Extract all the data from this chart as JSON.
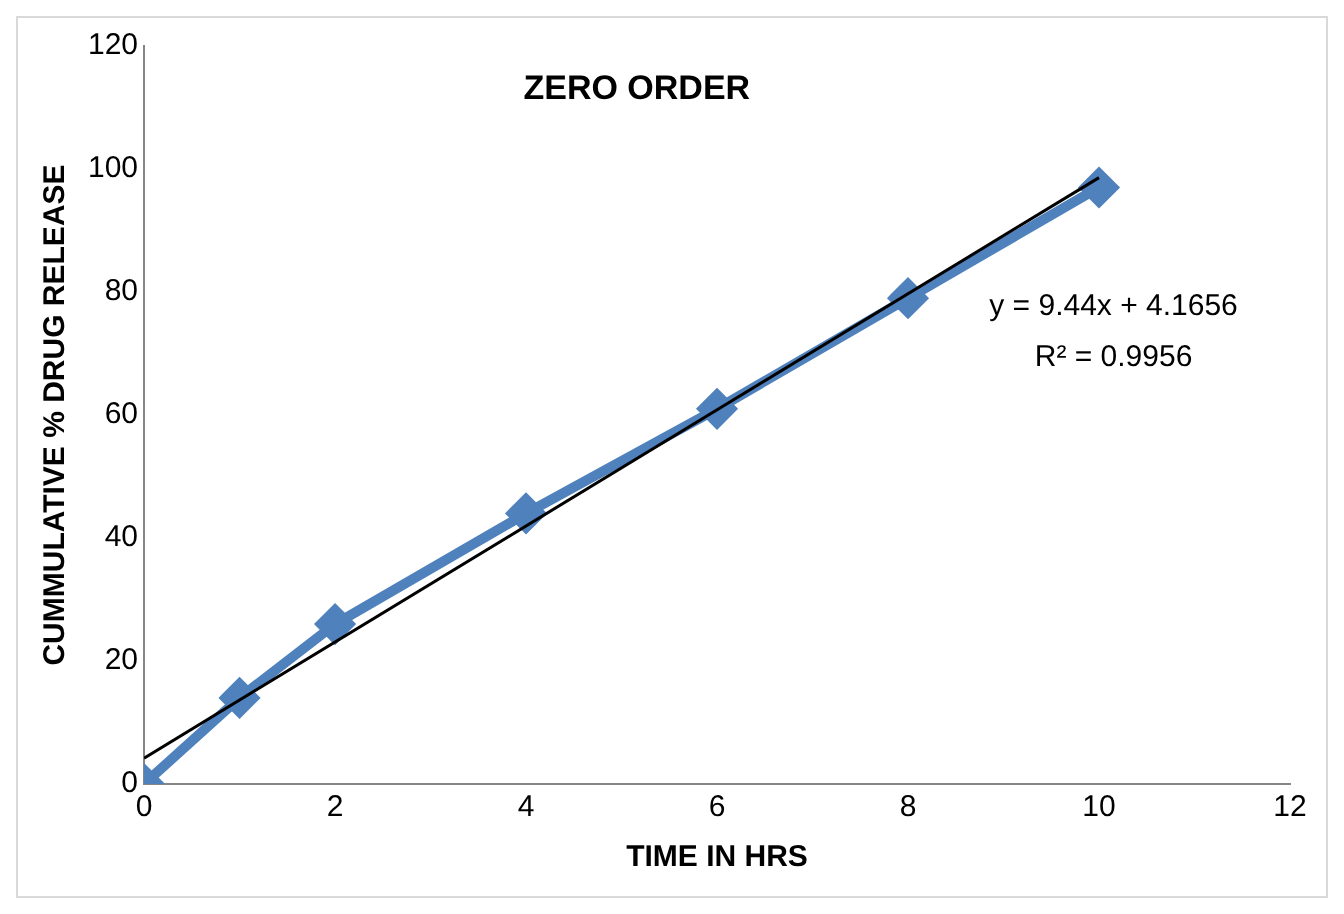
{
  "chart_data": {
    "type": "line",
    "title": "ZERO ORDER",
    "xlabel": "TIME IN HRS",
    "ylabel": "CUMMULATIVE % DRUG RELEASE",
    "x": [
      0,
      1,
      2,
      4,
      6,
      8,
      10
    ],
    "series": [
      {
        "color": "#4f81bd",
        "values": [
          0,
          14,
          26,
          44,
          61,
          79,
          97
        ],
        "marker": "diamond"
      },
      {
        "type": "line",
        "color": "#000000",
        "x": [
          0,
          10
        ],
        "values": [
          4.2,
          98.6
        ],
        "marker": "none"
      }
    ],
    "xlim": [
      0,
      12
    ],
    "xticks": [
      0,
      2,
      4,
      6,
      8,
      10,
      12
    ],
    "ylim": [
      0,
      120
    ],
    "yticks": [
      0,
      20,
      40,
      60,
      80,
      100,
      120
    ],
    "grid": false,
    "legend": false,
    "annotations": [
      "y = 9.44x + 4.1656",
      "R² = 0.9956"
    ]
  }
}
